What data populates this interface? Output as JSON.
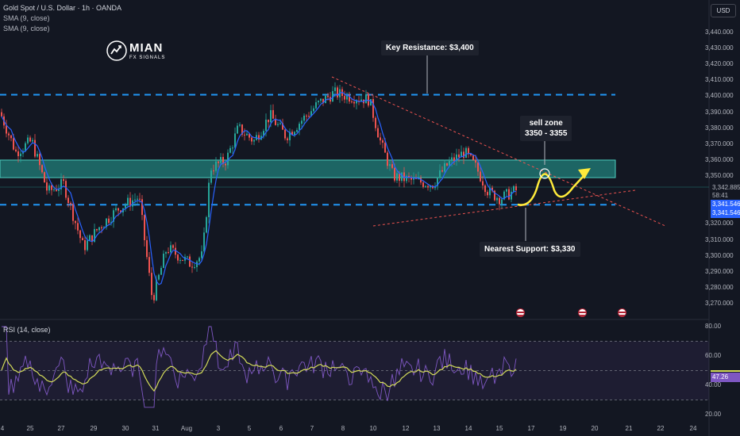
{
  "header": {
    "title": "Gold Spot / U.S. Dollar · 1h · OANDA",
    "sma1": "SMA (9, close)",
    "sma2": "SMA (9, close)"
  },
  "logo": {
    "name": "MIAN",
    "sub": "FX SIGNALS"
  },
  "currency_button": "USD",
  "annotations": {
    "resistance": "Key Resistance: $3,400",
    "sell_zone_line1": "sell zone",
    "sell_zone_line2": "3350 - 3355",
    "support": "Nearest Support: $3,330"
  },
  "price_axis": [
    "3,440.000",
    "3,430.000",
    "3,420.000",
    "3,410.000",
    "3,400.000",
    "3,390.000",
    "3,380.000",
    "3,370.000",
    "3,360.000",
    "3,350.000",
    "3,320.000",
    "3,310.000",
    "3,300.000",
    "3,290.000",
    "3,280.000",
    "3,270.000"
  ],
  "price_tags": {
    "current": "3,342.885",
    "countdown": "58:41",
    "sma_a": "3,341.546",
    "sma_b": "3,341.546"
  },
  "rsi": {
    "legend": "RSI (14, close)",
    "axis": [
      "80.00",
      "60.00",
      "40.00",
      "20.00"
    ],
    "value": "47.26"
  },
  "time_axis": [
    "4",
    "25",
    "27",
    "29",
    "30",
    "31",
    "Aug",
    "3",
    "5",
    "6",
    "7",
    "8",
    "10",
    "12",
    "13",
    "14",
    "15",
    "17",
    "19",
    "20",
    "21",
    "22",
    "24"
  ],
  "colors": {
    "background": "#131722",
    "bull": "#26a69a",
    "bear": "#ef5350",
    "level_line": "#2196f3",
    "zone": "#26a69a",
    "sma": "#2962ff",
    "projection": "#ffeb3b",
    "rsi_line": "#7e57c2",
    "rsi_ma": "#d4dc5a"
  }
}
